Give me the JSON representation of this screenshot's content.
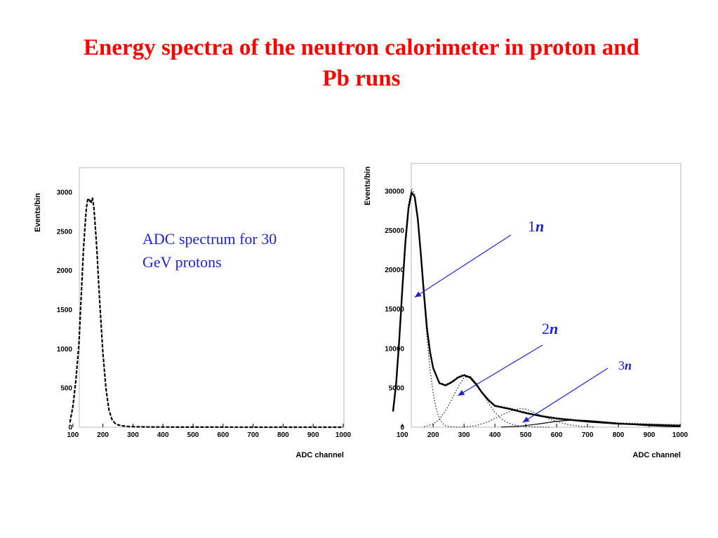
{
  "title": {
    "line1": "Energy spectra of the neutron calorimeter in proton and",
    "line2": "Pb runs"
  },
  "colors": {
    "title": "#ff0000",
    "annotation": "#2222cc",
    "curve": "#000000"
  },
  "chart_data": [
    {
      "type": "line",
      "title": "",
      "xlabel": "ADC channel",
      "ylabel": "Events/bin",
      "xlim": [
        70,
        1000
      ],
      "ylim": [
        0,
        3250
      ],
      "xticks": [
        100,
        200,
        300,
        400,
        500,
        600,
        700,
        800,
        900,
        1000
      ],
      "yticks": [
        0,
        500,
        1000,
        1500,
        2000,
        2500,
        3000
      ],
      "annotation": {
        "line1": "ADC spectrum for 30",
        "line2": "GeV protons"
      },
      "series": [
        {
          "style": "data-dashes",
          "x": [
            90,
            100,
            110,
            120,
            125,
            130,
            135,
            140,
            145,
            150,
            155,
            160,
            165,
            170,
            175,
            180,
            185,
            190,
            200,
            210,
            220,
            230,
            240,
            250,
            260,
            280,
            300,
            350,
            400,
            500,
            600,
            700,
            800,
            900,
            1000
          ],
          "y": [
            60,
            260,
            600,
            1050,
            1450,
            1850,
            2250,
            2550,
            2800,
            2920,
            2900,
            2860,
            2930,
            2800,
            2550,
            2250,
            1900,
            1550,
            950,
            500,
            220,
            100,
            50,
            30,
            20,
            10,
            6,
            3,
            2,
            1,
            1,
            0,
            0,
            0,
            0
          ]
        }
      ]
    },
    {
      "type": "line",
      "title": "",
      "xlabel": "ADC channel",
      "ylabel": "Events/bin",
      "xlim": [
        70,
        1000
      ],
      "ylim": [
        0,
        33000
      ],
      "xticks": [
        100,
        200,
        300,
        400,
        500,
        600,
        700,
        800,
        900,
        1000
      ],
      "yticks": [
        0,
        5000,
        10000,
        15000,
        20000,
        25000,
        30000
      ],
      "annotations": [
        {
          "prefix": "1",
          "italic": "n",
          "points_to": [
            140,
            16500
          ]
        },
        {
          "prefix": "2",
          "italic": "n",
          "points_to": [
            280,
            4000
          ]
        },
        {
          "prefix": "3",
          "italic": "n",
          "points_to": [
            490,
            600
          ]
        }
      ],
      "series": [
        {
          "style": "total-fit-solid",
          "x": [
            70,
            80,
            90,
            100,
            110,
            120,
            130,
            140,
            150,
            160,
            170,
            180,
            190,
            200,
            220,
            240,
            260,
            280,
            300,
            320,
            340,
            360,
            380,
            400,
            450,
            500,
            550,
            600,
            700,
            800,
            900,
            1000
          ],
          "y": [
            2000,
            5500,
            11000,
            17500,
            23500,
            27800,
            29800,
            29300,
            26500,
            22000,
            17000,
            12500,
            9500,
            7500,
            5600,
            5300,
            5700,
            6300,
            6600,
            6300,
            5400,
            4300,
            3400,
            2700,
            2300,
            1800,
            1400,
            1100,
            700,
            450,
            300,
            200
          ]
        },
        {
          "style": "data-dots",
          "x": [
            70,
            80,
            90,
            100,
            110,
            120,
            130,
            140,
            150,
            160,
            170,
            180,
            190,
            200,
            220,
            240,
            260,
            280,
            300,
            320,
            340,
            360,
            380,
            400,
            450,
            500,
            550,
            600,
            700,
            800,
            900,
            1000
          ],
          "y": [
            2300,
            6000,
            11500,
            18000,
            24000,
            28300,
            30300,
            29600,
            26800,
            22300,
            17300,
            12800,
            9700,
            7600,
            5700,
            5400,
            5800,
            6400,
            6700,
            6400,
            5500,
            4400,
            3500,
            2800,
            2400,
            1900,
            1500,
            1200,
            800,
            550,
            400,
            300
          ]
        },
        {
          "style": "component-1n-dotted",
          "x": [
            70,
            80,
            90,
            100,
            110,
            120,
            130,
            140,
            150,
            160,
            170,
            180,
            190,
            200,
            210,
            220,
            230,
            240,
            250,
            260,
            280,
            300
          ],
          "y": [
            2000,
            5500,
            11000,
            17500,
            23500,
            27800,
            29800,
            29200,
            26300,
            21600,
            16300,
            11400,
            7300,
            4300,
            2300,
            1100,
            500,
            200,
            80,
            30,
            5,
            0
          ]
        },
        {
          "style": "component-2n-dotted",
          "x": [
            170,
            200,
            220,
            240,
            260,
            280,
            300,
            320,
            340,
            360,
            380,
            400,
            420,
            440,
            460,
            480,
            500,
            540,
            580
          ],
          "y": [
            50,
            400,
            1000,
            2100,
            3500,
            5100,
            6300,
            6500,
            5600,
            4300,
            3000,
            1900,
            1100,
            600,
            300,
            150,
            80,
            20,
            0
          ]
        },
        {
          "style": "component-3n-dotted",
          "x": [
            300,
            340,
            380,
            420,
            460,
            480,
            500,
            520,
            560,
            600,
            640,
            680,
            720
          ],
          "y": [
            30,
            200,
            700,
            1500,
            2200,
            2350,
            2300,
            2000,
            1300,
            700,
            300,
            100,
            30
          ]
        },
        {
          "style": "component-4n-solid",
          "x": [
            420,
            480,
            540,
            600,
            650,
            700,
            760,
            820,
            880,
            940,
            1000
          ],
          "y": [
            20,
            120,
            400,
            750,
            900,
            850,
            650,
            420,
            230,
            110,
            50
          ]
        }
      ]
    }
  ]
}
